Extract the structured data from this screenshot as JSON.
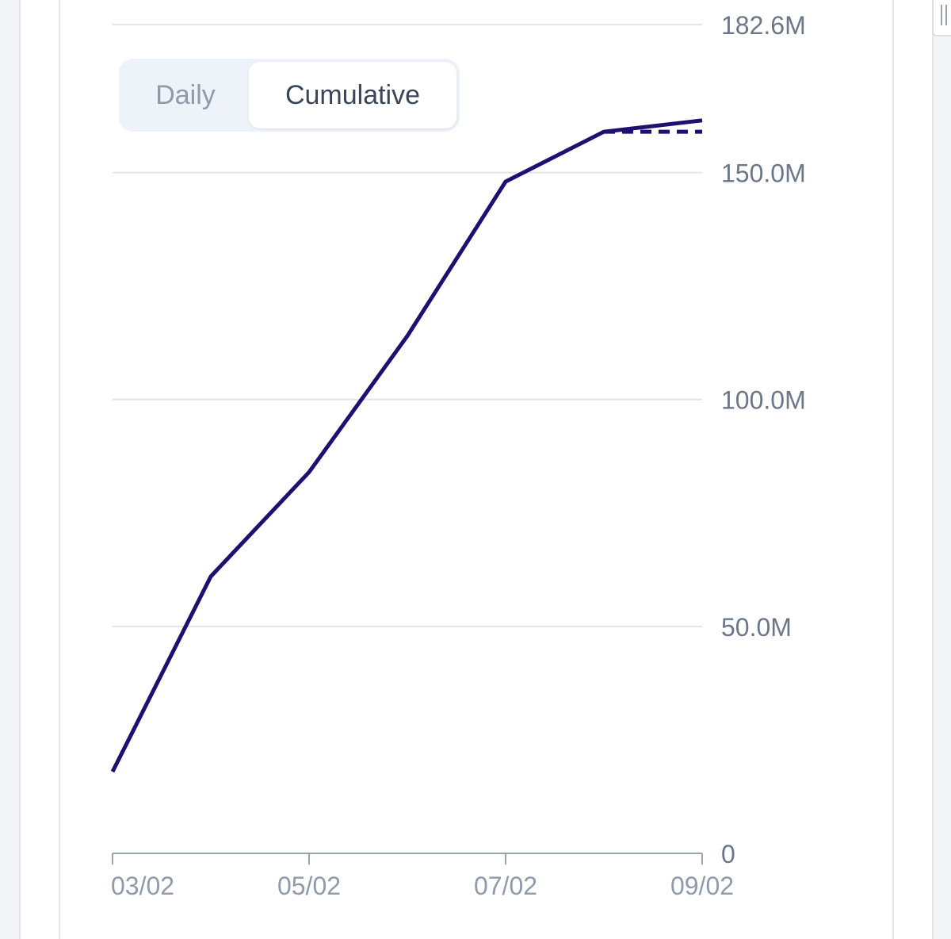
{
  "toggle": {
    "options": [
      "Daily",
      "Cumulative"
    ],
    "selected": "Cumulative"
  },
  "colors": {
    "line": "#1f0f6e",
    "grid": "#e1e5ec",
    "tick_text": "#6b7788",
    "axis": "#9aa3b0"
  },
  "chart_data": {
    "type": "line",
    "title": "",
    "xlabel": "",
    "ylabel": "",
    "x_ticks": [
      "03/02",
      "05/02",
      "07/02",
      "09/02"
    ],
    "y_ticks": [
      {
        "value": 0,
        "label": "0"
      },
      {
        "value": 50000000,
        "label": "50.0M"
      },
      {
        "value": 100000000,
        "label": "100.0M"
      },
      {
        "value": 150000000,
        "label": "150.0M"
      },
      {
        "value": 182600000,
        "label": "182.6M"
      }
    ],
    "ylim": [
      0,
      182600000
    ],
    "xlim": [
      "03/02",
      "09/02"
    ],
    "grid": true,
    "y_axis_side": "right",
    "series": [
      {
        "style": "solid",
        "x": [
          "03/02",
          "04/02",
          "05/02",
          "06/02",
          "07/02",
          "08/02",
          "09/02"
        ],
        "y": [
          18000000,
          61000000,
          84000000,
          114000000,
          148000000,
          159000000,
          161500000
        ]
      },
      {
        "style": "dashed",
        "x": [
          "08/02",
          "09/02"
        ],
        "y": [
          159000000,
          159000000
        ]
      }
    ]
  }
}
